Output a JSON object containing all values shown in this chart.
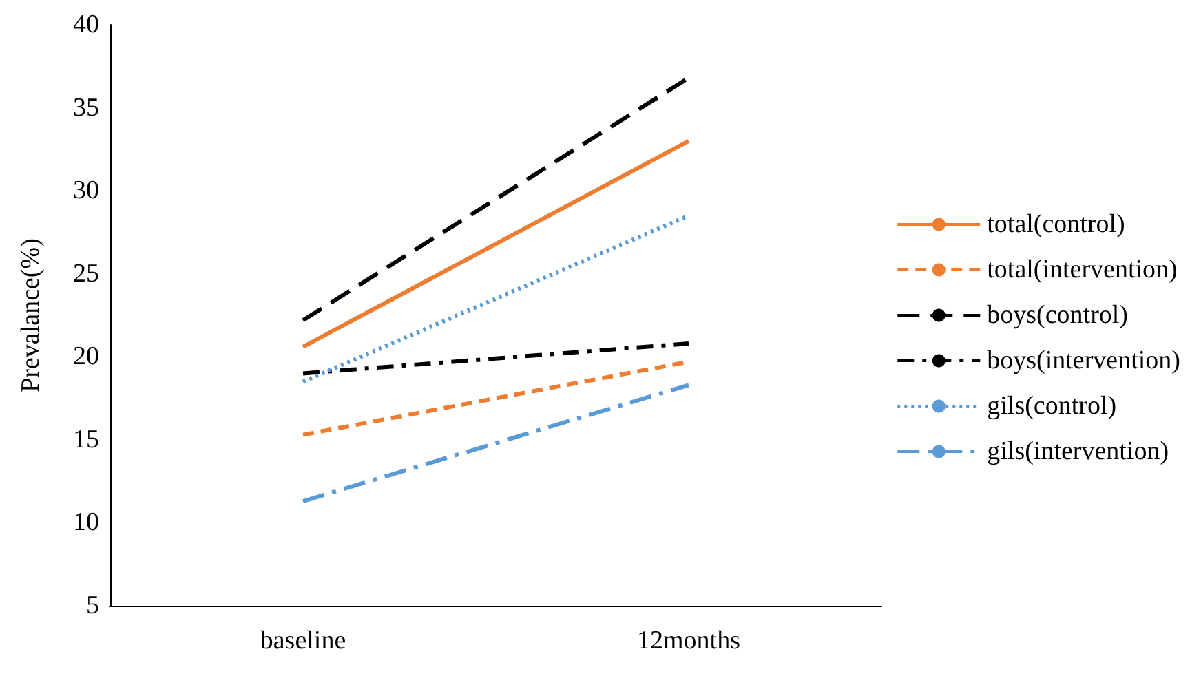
{
  "chart_data": {
    "type": "line",
    "ylabel": "Prevalance(%)",
    "categories": [
      "baseline",
      "12months"
    ],
    "series": [
      {
        "name": "total(control)",
        "color": "#ed7d31",
        "line_style": "solid",
        "values": [
          20.6,
          33
        ]
      },
      {
        "name": "total(intervention)",
        "color": "#ed7d31",
        "line_style": "dashed",
        "values": [
          15.3,
          19.7
        ]
      },
      {
        "name": "boys(control)",
        "color": "#000000",
        "line_style": "longdash",
        "values": [
          22.2,
          36.8
        ]
      },
      {
        "name": "boys(intervention)",
        "color": "#000000",
        "line_style": "dashdot",
        "values": [
          19,
          20.8
        ]
      },
      {
        "name": "gils(control)",
        "color": "#5b9bd5",
        "line_style": "dotted",
        "values": [
          18.5,
          28.5
        ]
      },
      {
        "name": "gils(intervention)",
        "color": "#5b9bd5",
        "line_style": "longdashdot",
        "values": [
          11.3,
          18.3
        ]
      }
    ],
    "ylim": [
      5,
      40
    ],
    "yticks": [
      5,
      10,
      15,
      20,
      25,
      30,
      35,
      40
    ],
    "grid": false,
    "legend": "right",
    "marker": "none"
  }
}
